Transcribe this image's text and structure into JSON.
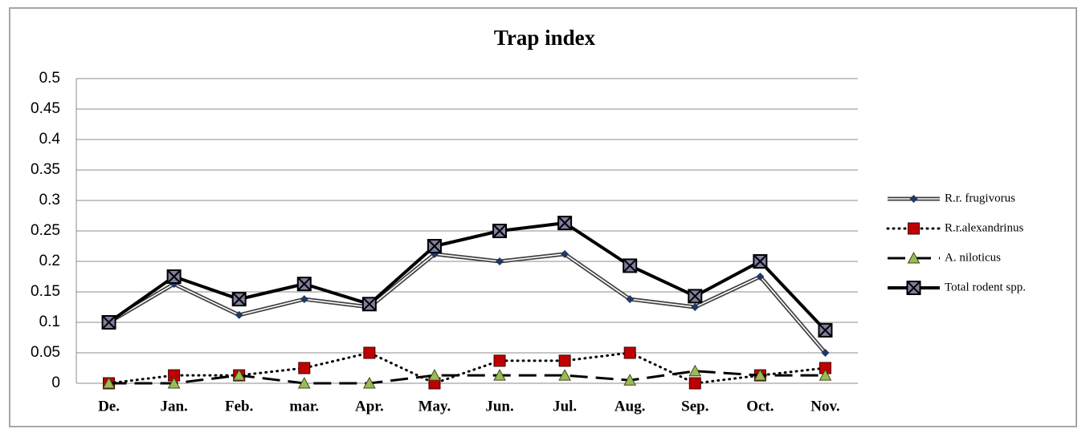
{
  "chart_data": {
    "type": "line",
    "title": "Trap index",
    "categories": [
      "De.",
      "Jan.",
      "Feb.",
      "mar.",
      "Apr.",
      "May.",
      "Jun.",
      "Jul.",
      "Aug.",
      "Sep.",
      "Oct.",
      "Nov."
    ],
    "series": [
      {
        "name": "R.r. frugivorus",
        "color": "#1f3864",
        "style": "double",
        "marker": "diamond",
        "values": [
          0.1,
          0.163,
          0.112,
          0.138,
          0.125,
          0.212,
          0.2,
          0.212,
          0.138,
          0.125,
          0.175,
          0.05
        ]
      },
      {
        "name": "R.r.alexandrinus",
        "color": "#c00000",
        "style": "dotted",
        "marker": "square",
        "values": [
          0,
          0.013,
          0.013,
          0.025,
          0.05,
          0,
          0.037,
          0.037,
          0.05,
          0,
          0.013,
          0.025
        ]
      },
      {
        "name": "A. niloticus",
        "color": "#9bbb59",
        "style": "dashed",
        "marker": "triangle",
        "values": [
          0,
          0,
          0.013,
          0,
          0,
          0.013,
          0.013,
          0.013,
          0.005,
          0.02,
          0.013,
          0.013
        ]
      },
      {
        "name": "Total rodent spp.",
        "color": "#7f7f9f",
        "style": "solid",
        "marker": "xsquare",
        "values": [
          0.1,
          0.175,
          0.138,
          0.163,
          0.13,
          0.225,
          0.25,
          0.263,
          0.193,
          0.143,
          0.2,
          0.087
        ]
      }
    ],
    "ylim": [
      0,
      0.5
    ],
    "yticks": [
      0,
      0.05,
      0.1,
      0.15,
      0.2,
      0.25,
      0.3,
      0.35,
      0.4,
      0.45,
      0.5
    ],
    "grid": true,
    "legend": "right"
  }
}
